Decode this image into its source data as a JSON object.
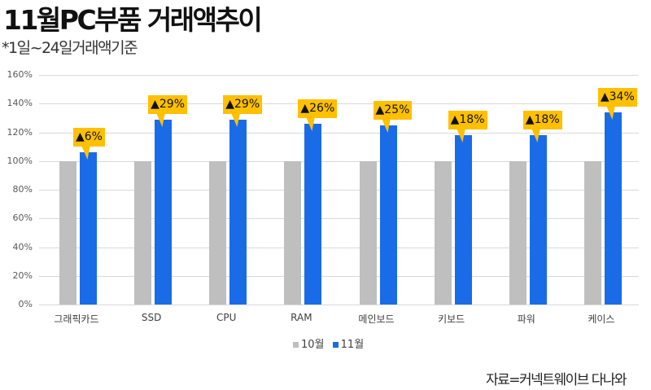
{
  "header": {
    "title": "11월PC부품 거래액추이",
    "subtitle": "*1일~24일거래액기준"
  },
  "footer": {
    "source": "자료=커넥트웨이브 다나와"
  },
  "legend": {
    "oct": "10월",
    "nov": "11월"
  },
  "colors": {
    "oct": "#bfbfbf",
    "nov": "#1a6be8",
    "callout": "#ffc000"
  },
  "yticks": [
    "0%",
    "20%",
    "40%",
    "60%",
    "80%",
    "100%",
    "120%",
    "140%",
    "160%"
  ],
  "categories": [
    "그래픽카드",
    "SSD",
    "CPU",
    "RAM",
    "메인보드",
    "키보드",
    "파워",
    "케이스"
  ],
  "callouts": [
    "▲6%",
    "▲29%",
    "▲29%",
    "▲26%",
    "▲25%",
    "▲18%",
    "▲18%",
    "▲34%"
  ],
  "chart_data": {
    "type": "bar",
    "title": "11월PC부품 거래액추이",
    "subtitle": "*1일~24일거래액기준",
    "xlabel": "",
    "ylabel": "",
    "ylim": [
      0,
      160
    ],
    "yticks": [
      0,
      20,
      40,
      60,
      80,
      100,
      120,
      140,
      160
    ],
    "grid": true,
    "legend_position": "bottom",
    "categories": [
      "그래픽카드",
      "SSD",
      "CPU",
      "RAM",
      "메인보드",
      "키보드",
      "파워",
      "케이스"
    ],
    "series": [
      {
        "name": "10월",
        "values": [
          100,
          100,
          100,
          100,
          100,
          100,
          100,
          100
        ]
      },
      {
        "name": "11월",
        "values": [
          106,
          129,
          129,
          126,
          125,
          118,
          118,
          134
        ]
      }
    ],
    "annotations": [
      "▲6%",
      "▲29%",
      "▲29%",
      "▲26%",
      "▲25%",
      "▲18%",
      "▲18%",
      "▲34%"
    ],
    "source": "자료=커넥트웨이브 다나와"
  }
}
